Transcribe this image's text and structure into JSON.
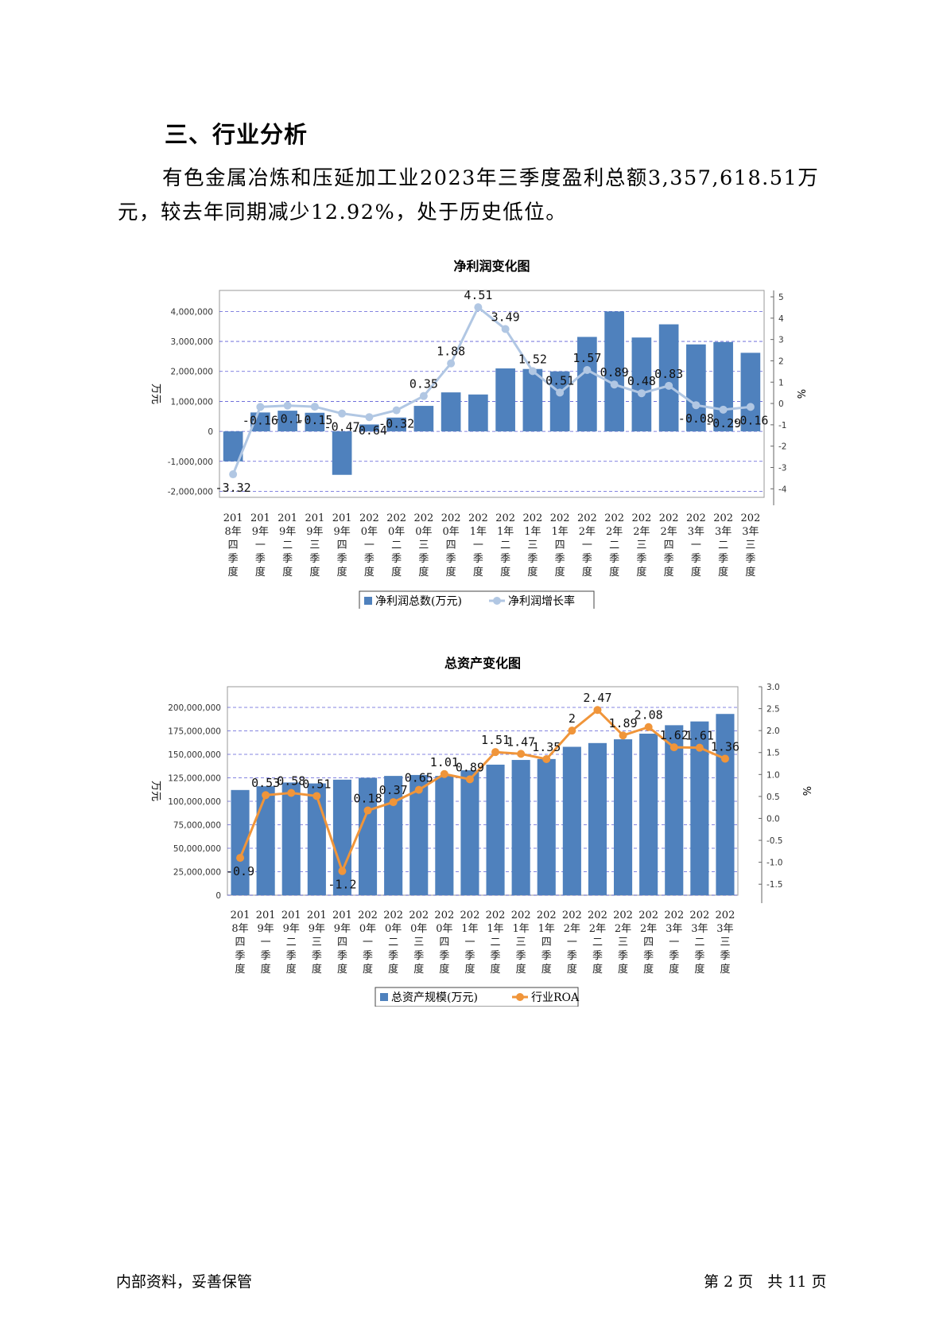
{
  "section_heading": "三、行业分析",
  "paragraph": "有色金属冶炼和压延加工业2023年三季度盈利总额3,357,618.51万元，较去年同期减少12.92%，处于历史低位。",
  "footer": {
    "left": "内部资料，妥善保管",
    "right": "第 2 页   共 11 页"
  },
  "colors": {
    "bar": "#4f81bd",
    "line1": "#b1c7e3",
    "line2": "#f0953a",
    "grid": "#3333cc"
  },
  "quarters": [
    [
      "201",
      "8年",
      "四",
      "季",
      "度"
    ],
    [
      "201",
      "9年",
      "一",
      "季",
      "度"
    ],
    [
      "201",
      "9年",
      "二",
      "季",
      "度"
    ],
    [
      "201",
      "9年",
      "三",
      "季",
      "度"
    ],
    [
      "201",
      "9年",
      "四",
      "季",
      "度"
    ],
    [
      "202",
      "0年",
      "一",
      "季",
      "度"
    ],
    [
      "202",
      "0年",
      "二",
      "季",
      "度"
    ],
    [
      "202",
      "0年",
      "三",
      "季",
      "度"
    ],
    [
      "202",
      "0年",
      "四",
      "季",
      "度"
    ],
    [
      "202",
      "1年",
      "一",
      "季",
      "度"
    ],
    [
      "202",
      "1年",
      "二",
      "季",
      "度"
    ],
    [
      "202",
      "1年",
      "三",
      "季",
      "度"
    ],
    [
      "202",
      "1年",
      "四",
      "季",
      "度"
    ],
    [
      "202",
      "2年",
      "一",
      "季",
      "度"
    ],
    [
      "202",
      "2年",
      "二",
      "季",
      "度"
    ],
    [
      "202",
      "2年",
      "三",
      "季",
      "度"
    ],
    [
      "202",
      "2年",
      "四",
      "季",
      "度"
    ],
    [
      "202",
      "3年",
      "一",
      "季",
      "度"
    ],
    [
      "202",
      "3年",
      "二",
      "季",
      "度"
    ],
    [
      "202",
      "3年",
      "三",
      "季",
      "度"
    ]
  ],
  "chart_data": [
    {
      "type": "bar",
      "title": "净利润变化图",
      "ylabel": "万元",
      "y2label": "%",
      "ylim": [
        -2200000,
        4700000
      ],
      "y2lim": [
        -4.4,
        5.3
      ],
      "yticks": [
        -2000000,
        -1000000,
        0,
        1000000,
        2000000,
        3000000,
        4000000
      ],
      "ytick_labels": [
        "-2,000,000",
        "-1,000,000",
        "0",
        "1,000,000",
        "2,000,000",
        "3,000,000",
        "4,000,000"
      ],
      "y2ticks": [
        -4,
        -3,
        -2,
        -1,
        0,
        1,
        2,
        3,
        4,
        5
      ],
      "y2tick_labels": [
        "-4",
        "-3",
        "-2",
        "-1",
        "0",
        "1",
        "2",
        "3",
        "4",
        "5"
      ],
      "grid": true,
      "legend_position": "bottom",
      "series": [
        {
          "name": "净利润总数(万元)",
          "type": "bar",
          "values": [
            -1000000,
            630000,
            690000,
            620000,
            -1450000,
            230000,
            460000,
            850000,
            1300000,
            1230000,
            2100000,
            2080000,
            2000000,
            3150000,
            4000000,
            3130000,
            3570000,
            2900000,
            2980000,
            2620000
          ]
        },
        {
          "name": "净利润增长率",
          "type": "line",
          "values": [
            -3.32,
            -0.16,
            -0.1,
            -0.15,
            -0.47,
            -0.64,
            -0.32,
            0.35,
            1.88,
            4.51,
            3.49,
            1.52,
            0.51,
            1.57,
            0.89,
            0.48,
            0.83,
            -0.08,
            -0.29,
            -0.16
          ],
          "labels": [
            "-3.32",
            "-0.16",
            "-0.1",
            "-0.15",
            "-0.47",
            "-0.64",
            "-0.32",
            "0.35",
            "1.88",
            "4.51",
            "3.49",
            "1.52",
            "0.51",
            "1.57",
            "0.89",
            "0.48",
            "0.83",
            "-0.08",
            "-0.29",
            "-0.16"
          ]
        }
      ]
    },
    {
      "type": "bar",
      "title": "总资产变化图",
      "ylabel": "万元",
      "y2label": "%",
      "ylim": [
        0,
        222000000
      ],
      "y2lim": [
        -1.75,
        3.0
      ],
      "yticks": [
        0,
        25000000,
        50000000,
        75000000,
        100000000,
        125000000,
        150000000,
        175000000,
        200000000
      ],
      "ytick_labels": [
        "0",
        "25,000,000",
        "50,000,000",
        "75,000,000",
        "100,000,000",
        "125,000,000",
        "150,000,000",
        "175,000,000",
        "200,000,000"
      ],
      "y2ticks": [
        -1.5,
        -1.0,
        -0.5,
        0.0,
        0.5,
        1.0,
        1.5,
        2.0,
        2.5,
        3.0
      ],
      "y2tick_labels": [
        "-1.5",
        "-1.0",
        "-0.5",
        "0.0",
        "0.5",
        "1.0",
        "1.5",
        "2.0",
        "2.5",
        "3.0"
      ],
      "grid": true,
      "legend_position": "bottom",
      "series": [
        {
          "name": "总资产规模(万元)",
          "type": "bar",
          "values": [
            112000000,
            116000000,
            120000000,
            119000000,
            123000000,
            125000000,
            127000000,
            128000000,
            127000000,
            133000000,
            139000000,
            144000000,
            145000000,
            158000000,
            162000000,
            166000000,
            172000000,
            181000000,
            185000000,
            193000000
          ]
        },
        {
          "name": "行业ROA",
          "type": "line",
          "values": [
            -0.9,
            0.53,
            0.58,
            0.51,
            -1.2,
            0.18,
            0.37,
            0.65,
            1.01,
            0.89,
            1.51,
            1.47,
            1.35,
            2.0,
            2.47,
            1.89,
            2.08,
            1.62,
            1.61,
            1.36
          ],
          "labels": [
            "-0.9",
            "0.53",
            "0.58",
            "0.51",
            "-1.2",
            "0.18",
            "0.37",
            "0.65",
            "1.01",
            "0.89",
            "1.51",
            "1.47",
            "1.35",
            "2",
            "2.47",
            "1.89",
            "2.08",
            "1.62",
            "1.61",
            "1.36"
          ]
        }
      ]
    }
  ]
}
